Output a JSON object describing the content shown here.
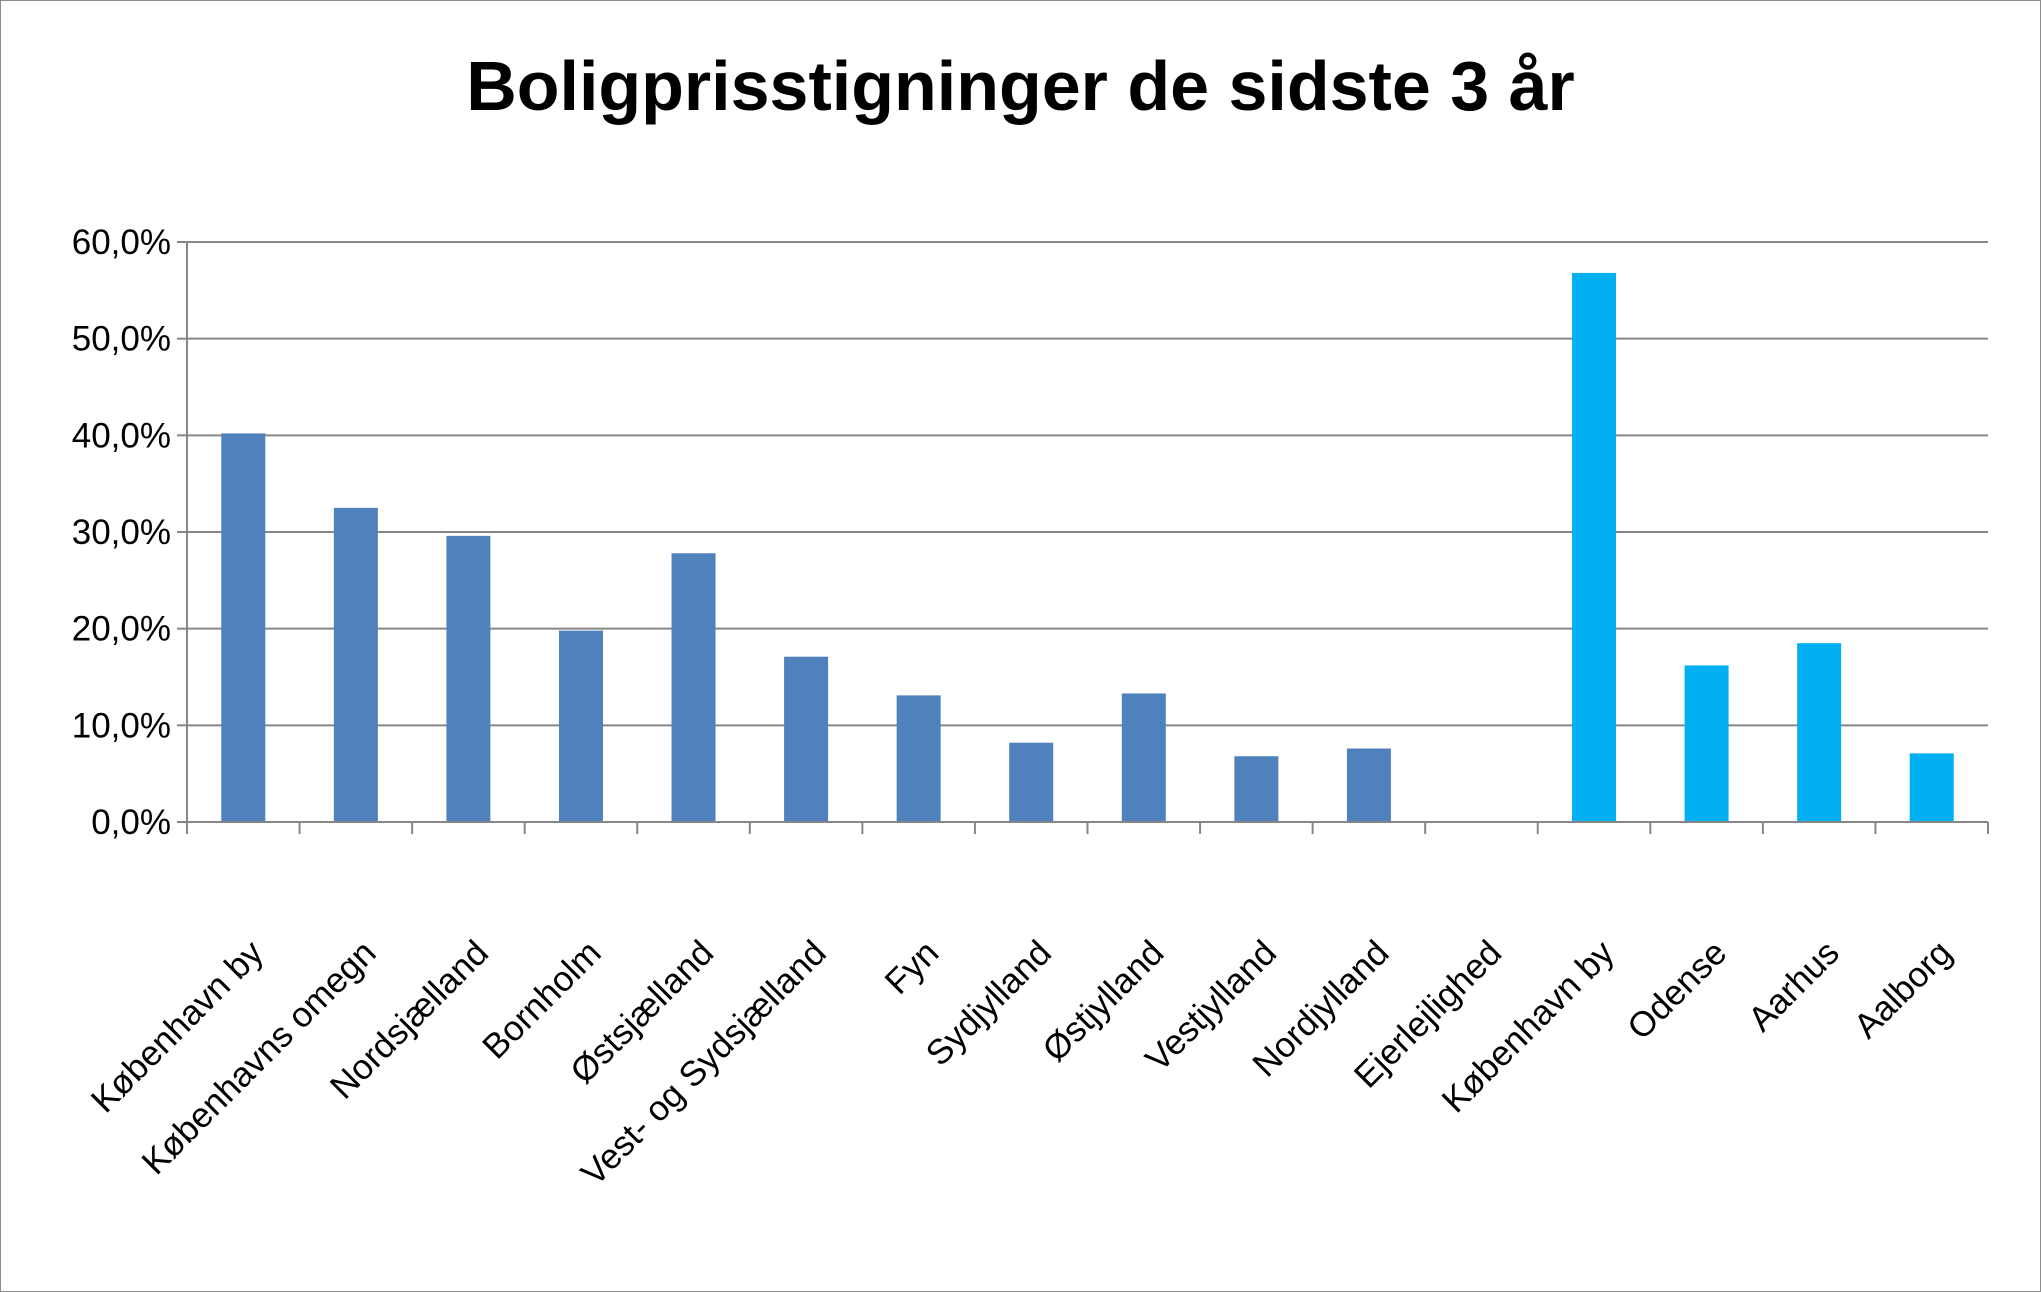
{
  "chart_data": {
    "type": "bar",
    "title": "Boligprisstigninger de sidste 3 år",
    "xlabel": "",
    "ylabel": "",
    "ylim": [
      0,
      60
    ],
    "yticks": [
      "0,0%",
      "10,0%",
      "20,0%",
      "30,0%",
      "40,0%",
      "50,0%",
      "60,0%"
    ],
    "grid": true,
    "legend": "none",
    "categories": [
      "København by",
      "Københavns omegn",
      "Nordsjælland",
      "Bornholm",
      "Østsjælland",
      "Vest- og Sydsjælland",
      "Fyn",
      "Sydjylland",
      "Østjylland",
      "Vestjylland",
      "Nordjylland",
      "Ejerlejlighed",
      "København by",
      "Odense",
      "Aarhus",
      "Aalborg"
    ],
    "values": [
      40.2,
      32.5,
      29.6,
      19.8,
      27.8,
      17.1,
      13.1,
      8.2,
      13.3,
      6.8,
      7.6,
      null,
      56.8,
      16.2,
      18.5,
      7.1
    ],
    "colors": [
      "#4f81bd",
      "#4f81bd",
      "#4f81bd",
      "#4f81bd",
      "#4f81bd",
      "#4f81bd",
      "#4f81bd",
      "#4f81bd",
      "#4f81bd",
      "#4f81bd",
      "#4f81bd",
      "#4f81bd",
      "#00b0f0",
      "#00b0f0",
      "#00b0f0",
      "#00b0f0"
    ]
  }
}
